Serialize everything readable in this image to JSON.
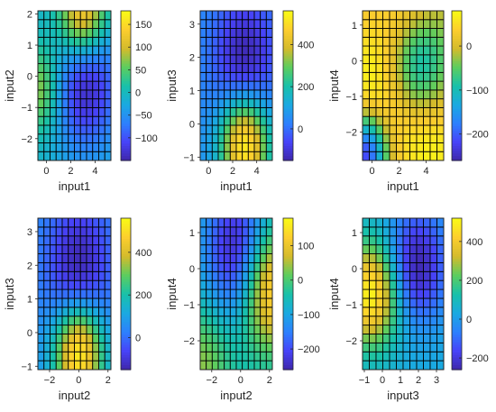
{
  "colormap": [
    "#3e26a8",
    "#4743f8",
    "#2d80fe",
    "#1aa9e1",
    "#18c1aa",
    "#5ccd5f",
    "#d4bb2c",
    "#fcce2e",
    "#f9fb15"
  ],
  "chart_data": [
    {
      "type": "heatmap",
      "xlabel": "input1",
      "ylabel": "input2",
      "xlim": [
        -0.7,
        5.3
      ],
      "ylim": [
        -2.7,
        2.1
      ],
      "x_ticks": [
        0,
        2,
        4
      ],
      "y_ticks": [
        -2,
        -1,
        0,
        1,
        2
      ],
      "grid_x": 12,
      "grid_y": 17,
      "clim": [
        -150,
        180
      ],
      "colorbar_ticks": [
        -100,
        -50,
        0,
        50,
        100,
        150
      ],
      "hot": [
        {
          "x": 3.0,
          "y": 2.0,
          "v": 180,
          "s": 1.0
        },
        {
          "x": -0.5,
          "y": -0.4,
          "v": 90,
          "s": 0.9
        }
      ],
      "cold": [
        {
          "x": 3.2,
          "y": -0.1,
          "v": -150,
          "s": 1.4
        }
      ],
      "base": -10
    },
    {
      "type": "heatmap",
      "xlabel": "input1",
      "ylabel": "input3",
      "xlim": [
        -0.7,
        5.3
      ],
      "ylim": [
        -1.1,
        3.4
      ],
      "x_ticks": [
        0,
        2,
        4
      ],
      "y_ticks": [
        -1,
        0,
        1,
        2,
        3
      ],
      "grid_x": 12,
      "grid_y": 17,
      "clim": [
        -150,
        560
      ],
      "colorbar_ticks": [
        0,
        200,
        400
      ],
      "hot": [
        {
          "x": 3.0,
          "y": -0.6,
          "v": 560,
          "s": 1.0
        }
      ],
      "cold": [
        {
          "x": 3.0,
          "y": 1.9,
          "v": -150,
          "s": 1.3
        }
      ],
      "base": 60
    },
    {
      "type": "heatmap",
      "xlabel": "input1",
      "ylabel": "input4",
      "xlim": [
        -0.7,
        5.3
      ],
      "ylim": [
        -2.8,
        1.4
      ],
      "x_ticks": [
        0,
        2,
        4
      ],
      "y_ticks": [
        -2,
        -1,
        0,
        1
      ],
      "grid_x": 12,
      "grid_y": 17,
      "clim": [
        -260,
        80
      ],
      "colorbar_ticks": [
        -200,
        -100,
        0
      ],
      "hot": [
        {
          "x": 0.0,
          "y": -0.8,
          "v": 80,
          "s": 1.6
        },
        {
          "x": 3.0,
          "y": 1.3,
          "v": 60,
          "s": 1.2
        },
        {
          "x": 4.5,
          "y": -2.5,
          "v": 70,
          "s": 1.4
        }
      ],
      "cold": [
        {
          "x": 3.4,
          "y": 0.0,
          "v": -160,
          "s": 1.1
        },
        {
          "x": -0.5,
          "y": -2.6,
          "v": -260,
          "s": 0.8
        }
      ],
      "base": -10
    },
    {
      "type": "heatmap",
      "xlabel": "input2",
      "ylabel": "input3",
      "xlim": [
        -2.8,
        2.2
      ],
      "ylim": [
        -1.1,
        3.4
      ],
      "x_ticks": [
        -2,
        0,
        2
      ],
      "y_ticks": [
        -1,
        0,
        1,
        2,
        3
      ],
      "grid_x": 12,
      "grid_y": 17,
      "clim": [
        -150,
        560
      ],
      "colorbar_ticks": [
        0,
        200,
        400
      ],
      "hot": [
        {
          "x": 0.0,
          "y": -0.6,
          "v": 560,
          "s": 1.0
        }
      ],
      "cold": [
        {
          "x": 0.0,
          "y": 1.9,
          "v": -150,
          "s": 1.3
        }
      ],
      "base": 60
    },
    {
      "type": "heatmap",
      "xlabel": "input2",
      "ylabel": "input4",
      "xlim": [
        -2.8,
        2.2
      ],
      "ylim": [
        -2.8,
        1.4
      ],
      "x_ticks": [
        -2,
        0,
        2
      ],
      "y_ticks": [
        -2,
        -1,
        0,
        1
      ],
      "grid_x": 12,
      "grid_y": 17,
      "clim": [
        -260,
        180
      ],
      "colorbar_ticks": [
        -200,
        -100,
        0,
        100
      ],
      "hot": [
        {
          "x": 2.0,
          "y": -0.5,
          "v": 180,
          "s": 1.2
        },
        {
          "x": -2.6,
          "y": -2.6,
          "v": 40,
          "s": 1.2
        }
      ],
      "cold": [
        {
          "x": -0.2,
          "y": 0.5,
          "v": -260,
          "s": 1.4
        }
      ],
      "base": -60
    },
    {
      "type": "heatmap",
      "xlabel": "input3",
      "ylabel": "input4",
      "xlim": [
        -1.1,
        3.4
      ],
      "ylim": [
        -2.8,
        1.4
      ],
      "x_ticks": [
        -1,
        0,
        1,
        2,
        3
      ],
      "y_ticks": [
        -2,
        -1,
        0,
        1
      ],
      "grid_x": 12,
      "grid_y": 17,
      "clim": [
        -260,
        520
      ],
      "colorbar_ticks": [
        -200,
        0,
        200,
        400
      ],
      "hot": [
        {
          "x": -0.6,
          "y": -0.7,
          "v": 520,
          "s": 1.0
        }
      ],
      "cold": [
        {
          "x": 1.9,
          "y": 0.1,
          "v": -260,
          "s": 1.1
        }
      ],
      "base": 40
    }
  ]
}
